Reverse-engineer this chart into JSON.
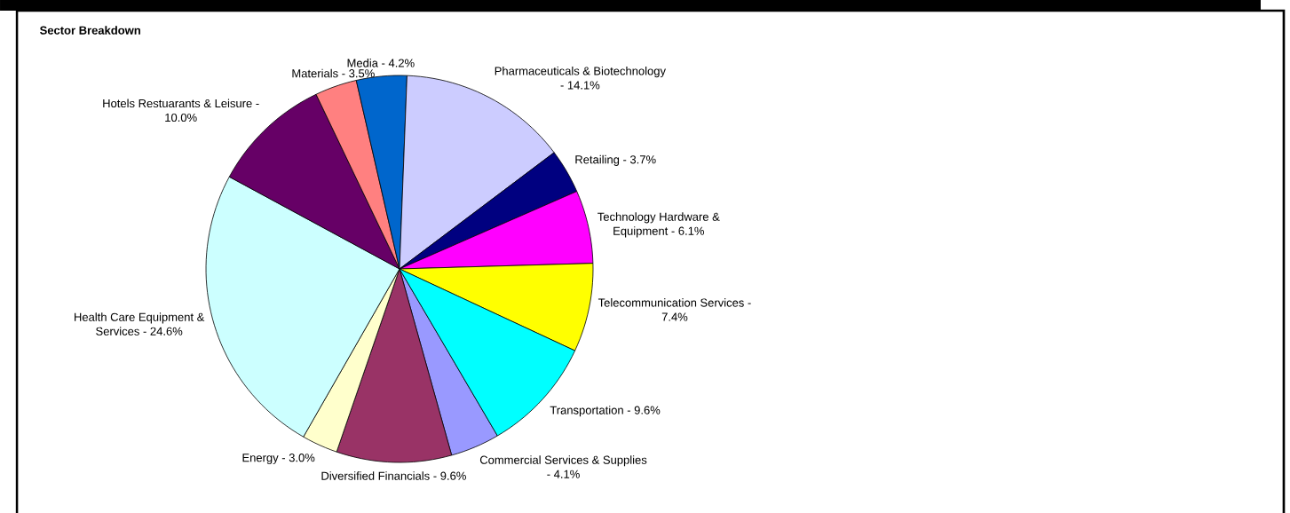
{
  "chart_data": {
    "type": "pie",
    "title": "Sector Breakdown",
    "categories": [
      "Commercial Services & Supplies - 4.1%",
      "Diversified Financials - 9.6%",
      "Energy - 3.0%",
      "Health Care Equipment & Services - 24.6%",
      "Hotels Restuarants & Leisure - 10.0%",
      "Materials - 3.5%",
      "Media - 4.2%",
      "Pharmaceuticals & Biotechnology - 14.1%",
      "Retailing - 3.7%",
      "Technology Hardware & Equipment - 6.1%",
      "Telecommunication Services - 7.4%",
      "Transportation - 9.6%"
    ],
    "values": [
      4.1,
      9.6,
      3.0,
      24.6,
      10.0,
      3.5,
      4.2,
      14.1,
      3.7,
      6.1,
      7.4,
      9.6
    ],
    "colors": [
      "#9999ff",
      "#993366",
      "#ffffcc",
      "#ccffff",
      "#660066",
      "#ff8080",
      "#0066cc",
      "#ccccff",
      "#000080",
      "#ff00ff",
      "#ffff00",
      "#00ffff"
    ],
    "legend": false
  }
}
